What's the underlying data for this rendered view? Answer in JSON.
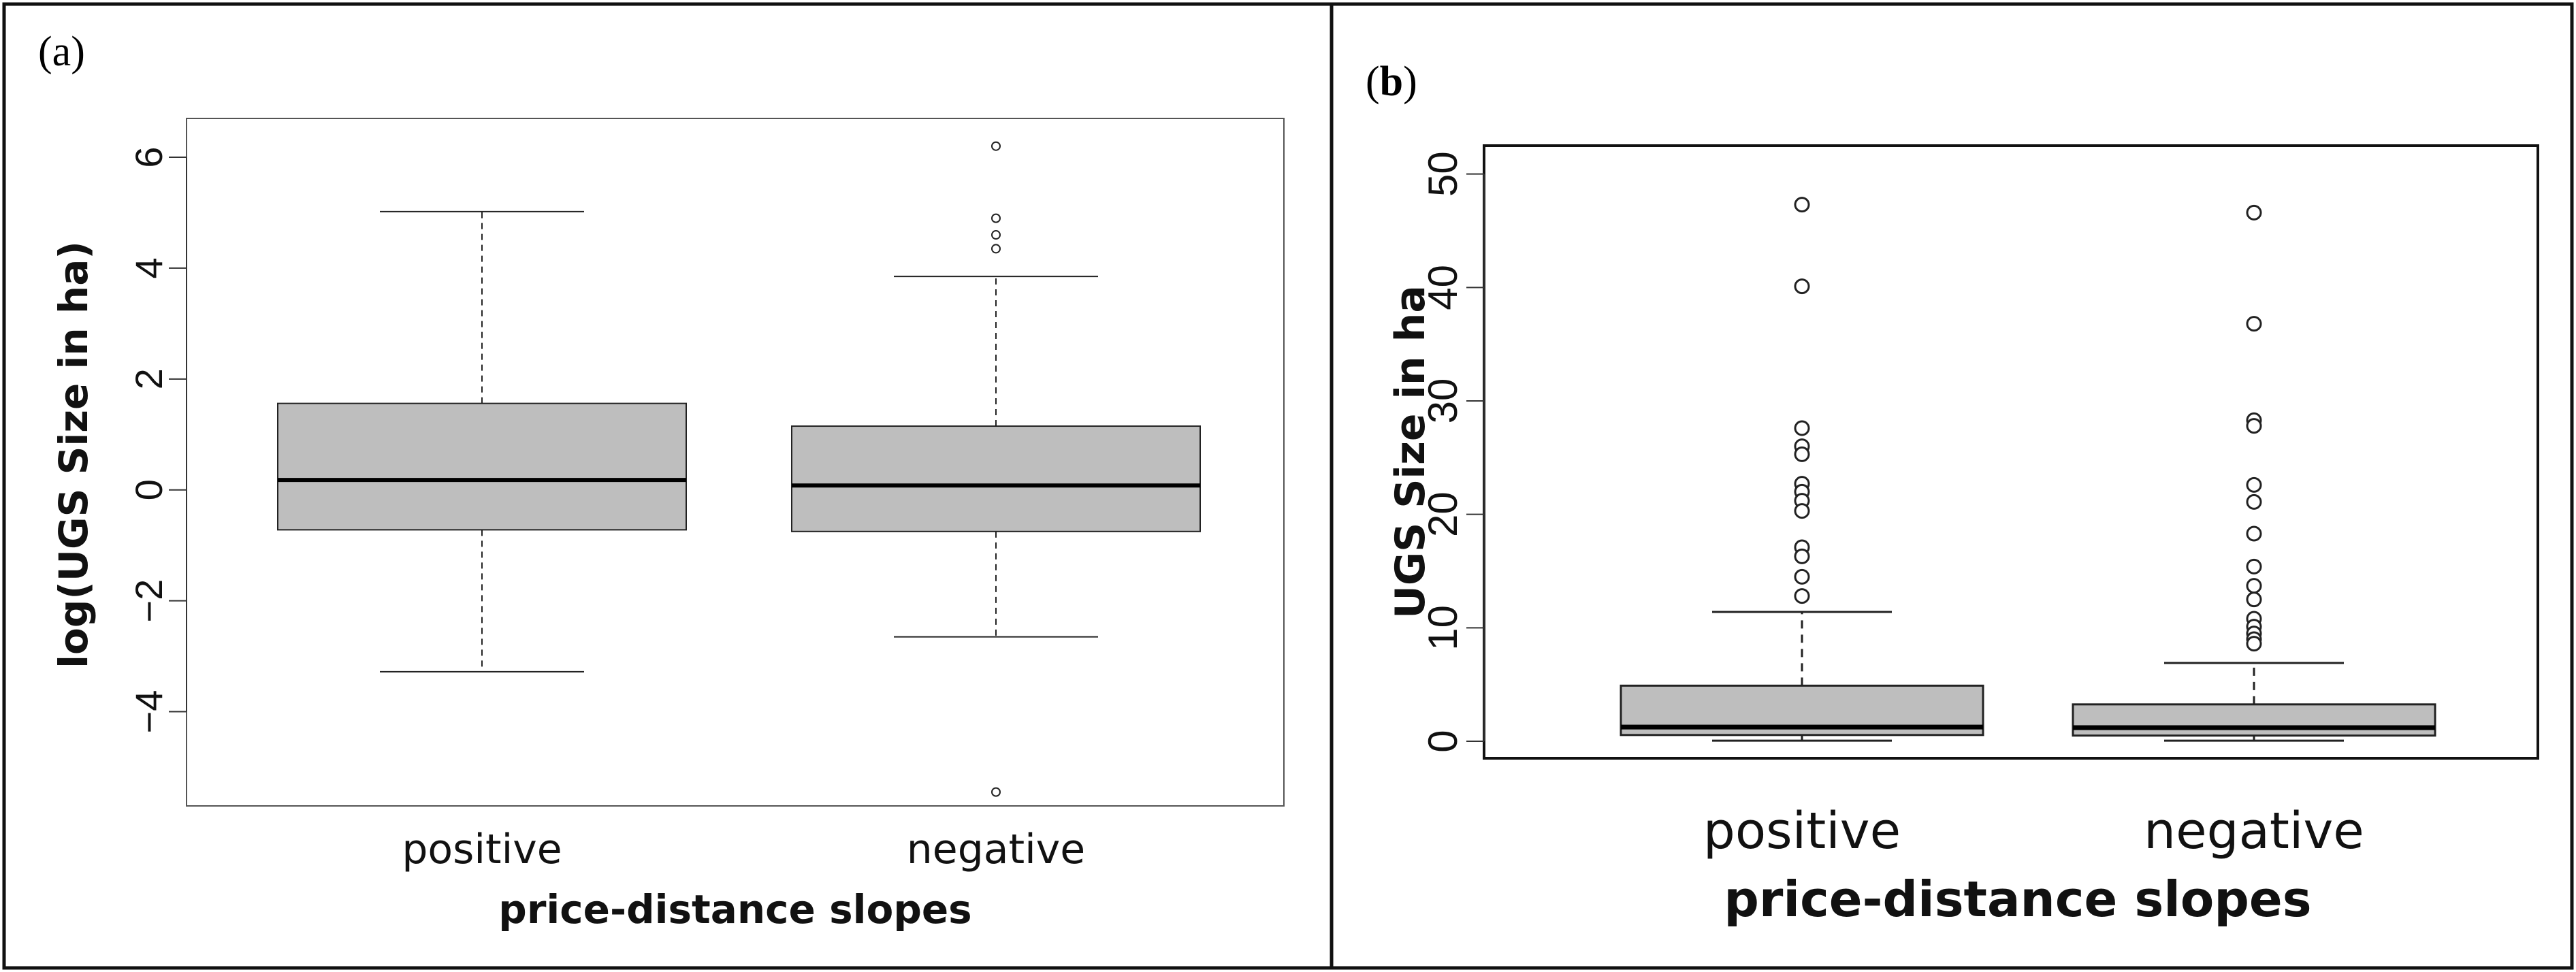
{
  "panels": [
    {
      "label_open": "(",
      "label_letter": "a",
      "label_close": ")"
    },
    {
      "label_open": "(",
      "label_letter": "b",
      "label_close": ")"
    }
  ],
  "chart_data": [
    {
      "type": "boxplot",
      "title": "",
      "xlabel": "price-distance slopes",
      "ylabel": "log(UGS Size in ha)",
      "categories": [
        "positive",
        "negative"
      ],
      "ylim": [
        -5.7,
        6.7
      ],
      "yticks": [
        -4,
        -2,
        0,
        2,
        4,
        6
      ],
      "ytick_labels": [
        "−4",
        "−2",
        "0",
        "2",
        "4",
        "6"
      ],
      "boxes": [
        {
          "whisker_low": -3.28,
          "q1": -0.72,
          "median": 0.18,
          "q3": 1.56,
          "whisker_high": 5.02,
          "outliers": []
        },
        {
          "whisker_low": -2.65,
          "q1": -0.75,
          "median": 0.08,
          "q3": 1.15,
          "whisker_high": 3.85,
          "outliers": [
            6.2,
            4.9,
            4.6,
            4.35,
            -5.45
          ]
        }
      ]
    },
    {
      "type": "boxplot",
      "title": "",
      "xlabel": "price-distance slopes",
      "ylabel": "UGS Size in ha",
      "categories": [
        "positive",
        "negative"
      ],
      "ylim": [
        -1.5,
        52.5
      ],
      "yticks": [
        0,
        10,
        20,
        30,
        40,
        50
      ],
      "ytick_labels": [
        "0",
        "10",
        "20",
        "30",
        "40",
        "50"
      ],
      "boxes": [
        {
          "whisker_low": 0.05,
          "q1": 0.55,
          "median": 1.25,
          "q3": 4.9,
          "whisker_high": 11.4,
          "outliers": [
            47.3,
            40.1,
            27.6,
            26.0,
            25.3,
            22.7,
            22.0,
            21.2,
            20.3,
            17.1,
            16.3,
            14.5,
            12.8
          ]
        },
        {
          "whisker_low": 0.05,
          "q1": 0.5,
          "median": 1.2,
          "q3": 3.25,
          "whisker_high": 6.9,
          "outliers": [
            46.6,
            36.8,
            28.3,
            27.8,
            22.6,
            21.1,
            18.3,
            15.4,
            13.7,
            12.5,
            10.8,
            10.1,
            9.5,
            9.0,
            8.6
          ]
        }
      ]
    }
  ]
}
